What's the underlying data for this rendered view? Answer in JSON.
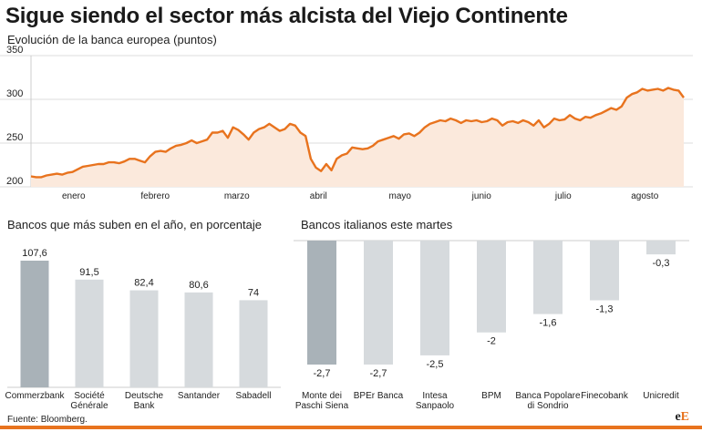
{
  "header": {
    "title": "Sigue siendo el sector más alcista del Viejo Continente",
    "subtitle": "Evolución de la banca europea (puntos)"
  },
  "footer": {
    "source": "Fuente: Bloomberg.",
    "logo_main": "e",
    "logo_accent": "E"
  },
  "colors": {
    "line": "#e8731e",
    "area": "#fbe9dc",
    "bar_highlight": "#a9b2b8",
    "bar_default": "#d6dadd",
    "grid": "#dddddd"
  },
  "chart_data": [
    {
      "type": "area",
      "ylim": [
        200,
        350
      ],
      "yticks": [
        200,
        250,
        300,
        350
      ],
      "xticks": [
        "enero",
        "febrero",
        "marzo",
        "abril",
        "mayo",
        "junio",
        "julio",
        "agosto"
      ],
      "x_start_month_index": 0,
      "grid": true,
      "values": [
        212,
        211,
        211,
        213,
        214,
        215,
        214,
        216,
        217,
        220,
        223,
        224,
        225,
        226,
        226,
        228,
        228,
        227,
        229,
        232,
        232,
        230,
        228,
        235,
        240,
        241,
        240,
        244,
        247,
        248,
        250,
        253,
        250,
        252,
        254,
        262,
        262,
        264,
        256,
        268,
        265,
        260,
        254,
        262,
        266,
        268,
        272,
        268,
        264,
        266,
        272,
        270,
        262,
        258,
        232,
        222,
        218,
        226,
        219,
        232,
        236,
        238,
        245,
        244,
        243,
        244,
        247,
        252,
        254,
        256,
        258,
        255,
        260,
        261,
        258,
        262,
        268,
        272,
        274,
        276,
        275,
        278,
        276,
        273,
        276,
        275,
        276,
        274,
        275,
        278,
        276,
        270,
        274,
        275,
        273,
        276,
        274,
        270,
        276,
        268,
        272,
        278,
        276,
        277,
        282,
        278,
        276,
        280,
        279,
        282,
        284,
        287,
        290,
        288,
        292,
        302,
        306,
        308,
        312,
        310,
        311,
        312,
        310,
        313,
        311,
        310,
        302
      ]
    },
    {
      "type": "bar",
      "title": "Bancos que más suben en el año, en porcentaje",
      "categories": [
        [
          "Commerzbank"
        ],
        [
          "Société",
          "Générale"
        ],
        [
          "Deutsche",
          "Bank"
        ],
        [
          "Santander"
        ],
        [
          "Sabadell"
        ]
      ],
      "values": [
        107.6,
        91.5,
        82.4,
        80.6,
        74
      ],
      "value_labels": [
        "107,6",
        "91,5",
        "82,4",
        "80,6",
        "74"
      ],
      "highlight_index": 0
    },
    {
      "type": "bar",
      "title": "Bancos italianos este martes",
      "categories": [
        [
          "Monte dei",
          "Paschi Siena"
        ],
        [
          "BPEr Banca"
        ],
        [
          "Intesa",
          "Sanpaolo"
        ],
        [
          "BPM"
        ],
        [
          "Banca Popolare",
          "di Sondrio"
        ],
        [
          "Finecobank"
        ],
        [
          "Unicredit"
        ]
      ],
      "values": [
        -2.7,
        -2.7,
        -2.5,
        -2,
        -1.6,
        -1.3,
        -0.3
      ],
      "value_labels": [
        "-2,7",
        "-2,7",
        "-2,5",
        "-2",
        "-1,6",
        "-1,3",
        "-0,3"
      ],
      "highlight_index": 0
    }
  ]
}
